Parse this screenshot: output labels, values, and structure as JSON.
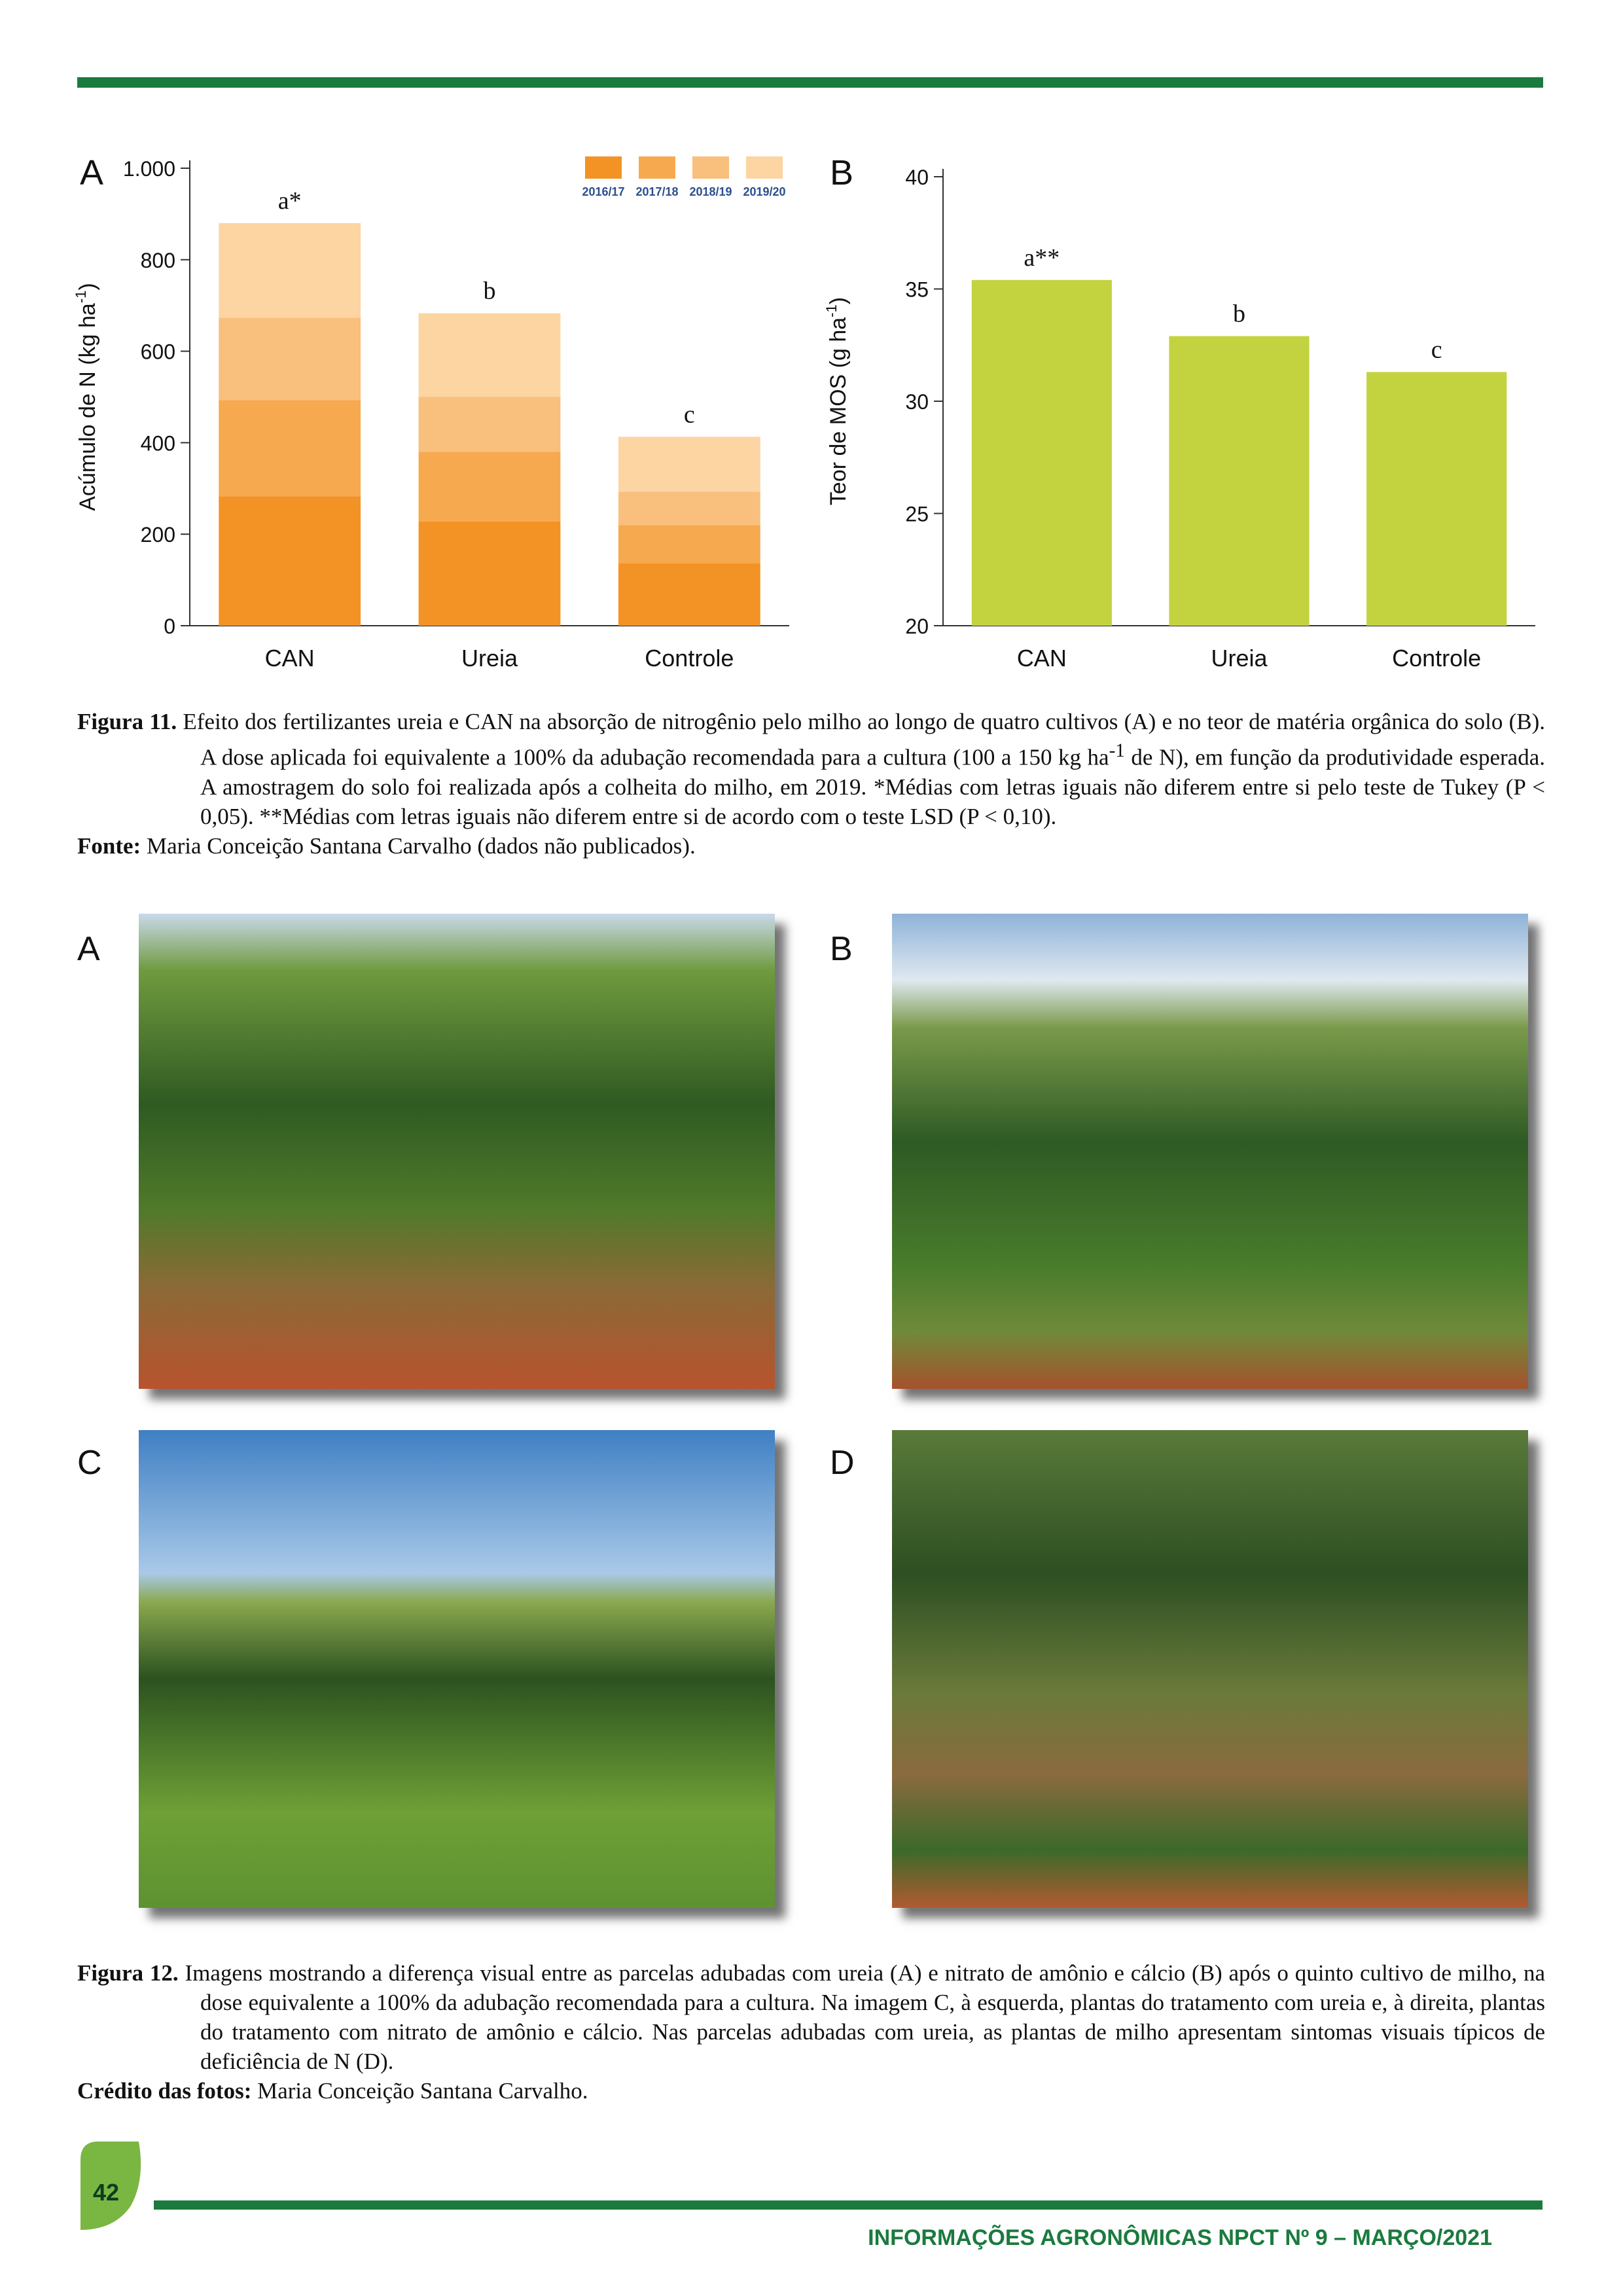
{
  "chart_data": [
    {
      "type": "stacked_bar",
      "panel": "A",
      "y_label": {
        "text": "Acúmulo de N (kg ha",
        "sup": "-1",
        "end": ")"
      },
      "categories": [
        "CAN",
        "Ureia",
        "Controle"
      ],
      "series": [
        {
          "name": "2016/17",
          "color": "#f39325",
          "values": [
            283,
            228,
            137
          ]
        },
        {
          "name": "2017/18",
          "color": "#f6a94f",
          "values": [
            210,
            152,
            83
          ]
        },
        {
          "name": "2018/19",
          "color": "#f9bf7d",
          "values": [
            180,
            120,
            73
          ]
        },
        {
          "name": "2019/20",
          "color": "#fcd5a3",
          "values": [
            207,
            183,
            120
          ]
        }
      ],
      "annotations": [
        "a*",
        "b",
        "c"
      ],
      "ylim": [
        0,
        1000
      ],
      "yticks": [
        0,
        200,
        400,
        600,
        800,
        {
          "value": 1000,
          "label": "1.000"
        }
      ],
      "legend": "top-right"
    },
    {
      "type": "bar",
      "panel": "B",
      "y_label": {
        "text": "Teor de MOS (g ha",
        "sup": "-1",
        "end": ")"
      },
      "categories": [
        "CAN",
        "Ureia",
        "Controle"
      ],
      "values": [
        35.4,
        32.9,
        31.3
      ],
      "color": "#c3d33f",
      "annotations": [
        "a**",
        "b",
        "c"
      ],
      "ylim": [
        20,
        40
      ],
      "yticks": [
        20,
        25,
        30,
        35,
        40
      ]
    }
  ],
  "figure11": {
    "label": "Figura 11.",
    "text_parts": [
      "Efeito dos fertilizantes ureia e CAN na absorção de nitrogênio pelo milho ao longo de quatro cultivos (A) e no teor de matéria orgânica do solo (B). A dose aplicada foi equivalente a 100% da adubação recomendada para a cultura (100 a 150 kg ha",
      "-1",
      " de N), em função da produtividade esperada. A amostragem do solo foi realizada após a colheita do milho, em 2019. *Médias com letras iguais não diferem entre si pelo teste de Tukey (P < 0,05). **Médias com letras iguais não diferem entre si de acordo com o teste LSD (P < 0,10)."
    ],
    "source_label": "Fonte:",
    "source": "Maria Conceição Santana Carvalho (dados não publicados)."
  },
  "figure12": {
    "panels": [
      "A",
      "B",
      "C",
      "D"
    ],
    "label": "Figura 12.",
    "text": "Imagens mostrando a diferença visual entre as parcelas adubadas com ureia (A) e nitrato de amônio e cálcio (B) após o quinto cultivo de milho, na dose equivalente a 100% da adubação recomendada para a cultura. Na imagem C, à esquerda, plantas do tratamento com ureia e, à direita, plantas do tratamento com nitrato de amônio e cálcio. Nas parcelas adubadas com ureia, as plantas de milho apresentam sintomas visuais típicos de deficiência de N (D).",
    "credit_label": "Crédito das fotos:",
    "credit": "Maria Conceição Santana Carvalho."
  },
  "footer": {
    "page": "42",
    "journal": "INFORMAÇÕES AGRONÔMICAS NPCT Nº 9 – MARÇO/2021"
  }
}
